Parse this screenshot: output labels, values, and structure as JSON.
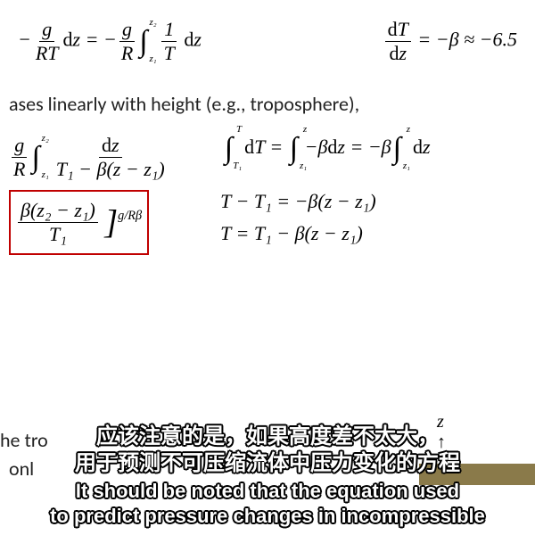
{
  "colors": {
    "background": "#ffffff",
    "text": "#000000",
    "box_border": "#c00000",
    "subtitle_fill": "#ffffff",
    "subtitle_stroke": "#000000",
    "ground": "#8a7a4a"
  },
  "typography": {
    "math_font": "Georgia, Times New Roman, serif",
    "body_font": "Calibri, Arial, sans-serif",
    "sub_cn_font": "PingFang SC, Microsoft YaHei, sans-serif",
    "sub_en_font": "Arial, sans-serif",
    "math_fontsize": 22,
    "body_fontsize": 22,
    "sub_cn_fontsize": 24,
    "sub_en_fontsize": 22
  },
  "row1": {
    "lhs1_neg": "−",
    "lhs1_frac_num": "g",
    "lhs1_frac_den": "RT",
    "lhs1_dz": "dz",
    "eq_sign": " = ",
    "rhs1_neg": "−",
    "rhs1_frac_num": "g",
    "rhs1_frac_den": "R",
    "rhs1_int_ub": "z₂",
    "rhs1_int_lb": "z₁",
    "rhs1_frac2_num": "1",
    "rhs1_frac2_den": "T",
    "rhs1_dz": "dz",
    "dT_frac_num": "dT",
    "dT_frac_den": "dz",
    "dT_eq": " = −β ≈ −6.5"
  },
  "text_line": "ases linearly with height (e.g., troposphere),",
  "row2": {
    "l_frac1_num": "g",
    "l_frac1_den": "R",
    "l_int_ub": "z₂",
    "l_int_lb": "z₁",
    "l_frac2_num": "dz",
    "l_frac2_den": "T₁ − β(z − z₁)",
    "r_int1_ub": "T",
    "r_int1_lb": "T₁",
    "r_int1_arg": "dT",
    "r_eq1": " = ",
    "r_int2_ub": "z",
    "r_int2_lb": "z₁",
    "r_int2_arg": "−β dz",
    "r_eq2": " = −β",
    "r_int3_ub": "z",
    "r_int3_lb": "z₁",
    "r_int3_arg": "dz"
  },
  "row3": {
    "box_frac_num": "β(z₂ − z₁)",
    "box_frac_den": "T₁",
    "box_rbracket": "]",
    "box_exp": "g/Rβ",
    "r_eq1": "T − T₁ = −β(z − z₁)",
    "r_eq2": "T = T₁ − β(z − z₁)"
  },
  "bg": {
    "tropo": "he tro",
    "only": "onl",
    "z_label": "z",
    "arrow": "↑"
  },
  "subtitles": {
    "cn_line1": "应该注意的是，如果高度差不太大，",
    "cn_line2": "用于预测不可压缩流体中压力变化的方程",
    "en_line1": "It should be noted that the equation used",
    "en_line2": "to predict pressure changes in incompressible"
  }
}
